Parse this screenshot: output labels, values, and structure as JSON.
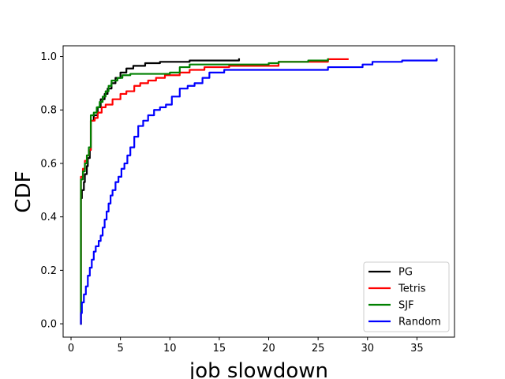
{
  "chart_data": {
    "type": "line",
    "title": "",
    "xlabel": "job slowdown",
    "ylabel": "CDF",
    "xlim": [
      -0.8,
      38.8
    ],
    "ylim": [
      -0.05,
      1.04
    ],
    "xticks": [
      0,
      5,
      10,
      15,
      20,
      25,
      30,
      35
    ],
    "yticks": [
      0.0,
      0.2,
      0.4,
      0.6,
      0.8,
      1.0
    ],
    "xtick_labels": [
      "0",
      "5",
      "10",
      "15",
      "20",
      "25",
      "30",
      "35"
    ],
    "ytick_labels": [
      "0.0",
      "0.2",
      "0.4",
      "0.6",
      "0.8",
      "1.0"
    ],
    "grid": false,
    "legend_position": "lower-right",
    "series": [
      {
        "name": "PG",
        "color": "#000000",
        "points": [
          [
            1.0,
            0.0
          ],
          [
            1.0,
            0.47
          ],
          [
            1.1,
            0.47
          ],
          [
            1.1,
            0.5
          ],
          [
            1.3,
            0.5
          ],
          [
            1.3,
            0.53
          ],
          [
            1.4,
            0.53
          ],
          [
            1.4,
            0.56
          ],
          [
            1.6,
            0.56
          ],
          [
            1.6,
            0.59
          ],
          [
            1.7,
            0.59
          ],
          [
            1.7,
            0.62
          ],
          [
            1.9,
            0.62
          ],
          [
            1.9,
            0.65
          ],
          [
            2.0,
            0.65
          ],
          [
            2.0,
            0.76
          ],
          [
            2.3,
            0.76
          ],
          [
            2.3,
            0.78
          ],
          [
            2.7,
            0.78
          ],
          [
            2.7,
            0.81
          ],
          [
            3.0,
            0.81
          ],
          [
            3.0,
            0.84
          ],
          [
            3.4,
            0.84
          ],
          [
            3.4,
            0.86
          ],
          [
            3.7,
            0.86
          ],
          [
            3.7,
            0.88
          ],
          [
            4.1,
            0.88
          ],
          [
            4.1,
            0.9
          ],
          [
            4.5,
            0.9
          ],
          [
            4.5,
            0.92
          ],
          [
            5.0,
            0.92
          ],
          [
            5.0,
            0.94
          ],
          [
            5.6,
            0.94
          ],
          [
            5.6,
            0.955
          ],
          [
            6.3,
            0.955
          ],
          [
            6.3,
            0.965
          ],
          [
            7.5,
            0.965
          ],
          [
            7.5,
            0.975
          ],
          [
            9.0,
            0.975
          ],
          [
            9.0,
            0.98
          ],
          [
            12.0,
            0.98
          ],
          [
            12.0,
            0.985
          ],
          [
            17.0,
            0.985
          ],
          [
            17.0,
            0.99
          ]
        ]
      },
      {
        "name": "Tetris",
        "color": "#ff0000",
        "points": [
          [
            1.0,
            0.0
          ],
          [
            1.0,
            0.55
          ],
          [
            1.2,
            0.55
          ],
          [
            1.2,
            0.58
          ],
          [
            1.4,
            0.58
          ],
          [
            1.4,
            0.61
          ],
          [
            1.6,
            0.61
          ],
          [
            1.6,
            0.63
          ],
          [
            1.8,
            0.63
          ],
          [
            1.8,
            0.65
          ],
          [
            2.0,
            0.65
          ],
          [
            2.0,
            0.76
          ],
          [
            2.4,
            0.76
          ],
          [
            2.4,
            0.77
          ],
          [
            2.7,
            0.77
          ],
          [
            2.7,
            0.79
          ],
          [
            3.1,
            0.79
          ],
          [
            3.1,
            0.81
          ],
          [
            3.5,
            0.81
          ],
          [
            3.5,
            0.82
          ],
          [
            4.2,
            0.82
          ],
          [
            4.2,
            0.84
          ],
          [
            5.0,
            0.84
          ],
          [
            5.0,
            0.86
          ],
          [
            5.6,
            0.86
          ],
          [
            5.6,
            0.87
          ],
          [
            6.4,
            0.87
          ],
          [
            6.4,
            0.89
          ],
          [
            7.0,
            0.89
          ],
          [
            7.0,
            0.9
          ],
          [
            7.8,
            0.9
          ],
          [
            7.8,
            0.91
          ],
          [
            8.6,
            0.91
          ],
          [
            8.6,
            0.92
          ],
          [
            9.5,
            0.92
          ],
          [
            9.5,
            0.93
          ],
          [
            11.0,
            0.93
          ],
          [
            11.0,
            0.94
          ],
          [
            12.0,
            0.94
          ],
          [
            12.0,
            0.95
          ],
          [
            13.5,
            0.95
          ],
          [
            13.5,
            0.96
          ],
          [
            16.0,
            0.96
          ],
          [
            16.0,
            0.965
          ],
          [
            21.0,
            0.965
          ],
          [
            21.0,
            0.98
          ],
          [
            26.0,
            0.98
          ],
          [
            26.0,
            0.99
          ],
          [
            28.0,
            0.99
          ]
        ]
      },
      {
        "name": "SJF",
        "color": "#008000",
        "points": [
          [
            1.0,
            0.0
          ],
          [
            1.0,
            0.54
          ],
          [
            1.2,
            0.54
          ],
          [
            1.2,
            0.57
          ],
          [
            1.4,
            0.57
          ],
          [
            1.4,
            0.6
          ],
          [
            1.6,
            0.6
          ],
          [
            1.6,
            0.63
          ],
          [
            1.8,
            0.63
          ],
          [
            1.8,
            0.66
          ],
          [
            2.0,
            0.66
          ],
          [
            2.0,
            0.78
          ],
          [
            2.3,
            0.78
          ],
          [
            2.3,
            0.79
          ],
          [
            2.6,
            0.79
          ],
          [
            2.6,
            0.81
          ],
          [
            2.9,
            0.81
          ],
          [
            2.9,
            0.83
          ],
          [
            3.2,
            0.83
          ],
          [
            3.2,
            0.85
          ],
          [
            3.5,
            0.85
          ],
          [
            3.5,
            0.87
          ],
          [
            3.8,
            0.87
          ],
          [
            3.8,
            0.89
          ],
          [
            4.1,
            0.89
          ],
          [
            4.1,
            0.91
          ],
          [
            4.7,
            0.91
          ],
          [
            4.7,
            0.92
          ],
          [
            5.2,
            0.92
          ],
          [
            5.2,
            0.93
          ],
          [
            6.0,
            0.93
          ],
          [
            6.0,
            0.935
          ],
          [
            10.0,
            0.935
          ],
          [
            10.0,
            0.94
          ],
          [
            11.0,
            0.94
          ],
          [
            11.0,
            0.96
          ],
          [
            12.0,
            0.96
          ],
          [
            12.0,
            0.97
          ],
          [
            20.0,
            0.97
          ],
          [
            20.0,
            0.975
          ],
          [
            21.0,
            0.975
          ],
          [
            21.0,
            0.98
          ],
          [
            24.0,
            0.98
          ],
          [
            24.0,
            0.985
          ],
          [
            26.0,
            0.985
          ],
          [
            26.0,
            0.99
          ]
        ]
      },
      {
        "name": "Random",
        "color": "#0000ff",
        "points": [
          [
            1.0,
            0.0
          ],
          [
            1.0,
            0.04
          ],
          [
            1.1,
            0.04
          ],
          [
            1.1,
            0.08
          ],
          [
            1.3,
            0.08
          ],
          [
            1.3,
            0.11
          ],
          [
            1.5,
            0.11
          ],
          [
            1.5,
            0.14
          ],
          [
            1.7,
            0.14
          ],
          [
            1.7,
            0.18
          ],
          [
            1.9,
            0.18
          ],
          [
            1.9,
            0.21
          ],
          [
            2.1,
            0.21
          ],
          [
            2.1,
            0.24
          ],
          [
            2.3,
            0.24
          ],
          [
            2.3,
            0.27
          ],
          [
            2.5,
            0.27
          ],
          [
            2.5,
            0.29
          ],
          [
            2.8,
            0.29
          ],
          [
            2.8,
            0.31
          ],
          [
            3.0,
            0.31
          ],
          [
            3.0,
            0.33
          ],
          [
            3.2,
            0.33
          ],
          [
            3.2,
            0.36
          ],
          [
            3.4,
            0.36
          ],
          [
            3.4,
            0.39
          ],
          [
            3.6,
            0.39
          ],
          [
            3.6,
            0.42
          ],
          [
            3.8,
            0.42
          ],
          [
            3.8,
            0.45
          ],
          [
            4.0,
            0.45
          ],
          [
            4.0,
            0.48
          ],
          [
            4.2,
            0.48
          ],
          [
            4.2,
            0.5
          ],
          [
            4.5,
            0.5
          ],
          [
            4.5,
            0.53
          ],
          [
            4.8,
            0.53
          ],
          [
            4.8,
            0.55
          ],
          [
            5.1,
            0.55
          ],
          [
            5.1,
            0.58
          ],
          [
            5.4,
            0.58
          ],
          [
            5.4,
            0.6
          ],
          [
            5.7,
            0.6
          ],
          [
            5.7,
            0.63
          ],
          [
            6.0,
            0.63
          ],
          [
            6.0,
            0.66
          ],
          [
            6.4,
            0.66
          ],
          [
            6.4,
            0.7
          ],
          [
            6.8,
            0.7
          ],
          [
            6.8,
            0.74
          ],
          [
            7.3,
            0.74
          ],
          [
            7.3,
            0.76
          ],
          [
            7.8,
            0.76
          ],
          [
            7.8,
            0.78
          ],
          [
            8.4,
            0.78
          ],
          [
            8.4,
            0.8
          ],
          [
            9.0,
            0.8
          ],
          [
            9.0,
            0.81
          ],
          [
            9.6,
            0.81
          ],
          [
            9.6,
            0.82
          ],
          [
            10.2,
            0.82
          ],
          [
            10.2,
            0.85
          ],
          [
            11.0,
            0.85
          ],
          [
            11.0,
            0.88
          ],
          [
            11.8,
            0.88
          ],
          [
            11.8,
            0.89
          ],
          [
            12.5,
            0.89
          ],
          [
            12.5,
            0.9
          ],
          [
            13.3,
            0.9
          ],
          [
            13.3,
            0.92
          ],
          [
            14.0,
            0.92
          ],
          [
            14.0,
            0.94
          ],
          [
            15.5,
            0.94
          ],
          [
            15.5,
            0.95
          ],
          [
            26.0,
            0.95
          ],
          [
            26.0,
            0.96
          ],
          [
            29.5,
            0.96
          ],
          [
            29.5,
            0.97
          ],
          [
            30.5,
            0.97
          ],
          [
            30.5,
            0.98
          ],
          [
            33.5,
            0.98
          ],
          [
            33.5,
            0.985
          ],
          [
            37.0,
            0.985
          ],
          [
            37.0,
            0.99
          ]
        ]
      }
    ]
  }
}
